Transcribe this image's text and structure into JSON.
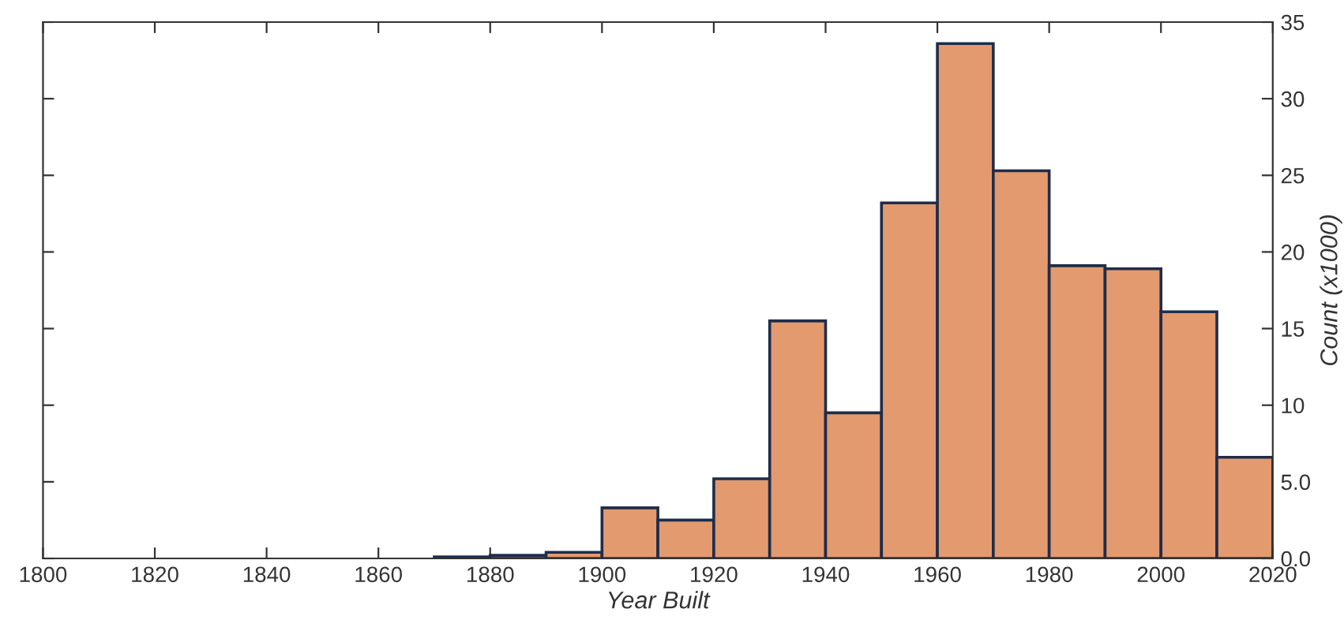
{
  "chart_data": {
    "type": "histogram",
    "xlabel": "Year Built",
    "ylabel": "Count (x1000)",
    "bins": [
      1810,
      1820,
      1830,
      1840,
      1850,
      1860,
      1870,
      1880,
      1890,
      1900,
      1910,
      1920,
      1930,
      1940,
      1950,
      1960,
      1970,
      1980,
      1990,
      2000,
      2010,
      2020
    ],
    "values": [
      0,
      0,
      0,
      0,
      0,
      0,
      0.1,
      0.2,
      0.4,
      3.3,
      2.5,
      5.2,
      15.5,
      9.5,
      23.2,
      33.6,
      25.3,
      19.1,
      18.9,
      16.1,
      6.6
    ],
    "color": "#e39a6f",
    "xlim": [
      1800,
      2020
    ],
    "xticks": [
      1800,
      1820,
      1840,
      1860,
      1880,
      1900,
      1920,
      1940,
      1960,
      1980,
      2000,
      2020
    ],
    "ylim": [
      0,
      35
    ],
    "yticks": [
      {
        "value": 0,
        "label": "0.0"
      },
      {
        "value": 5,
        "label": "5.0"
      },
      10,
      15,
      20,
      25,
      30,
      35
    ],
    "grid": false
  }
}
